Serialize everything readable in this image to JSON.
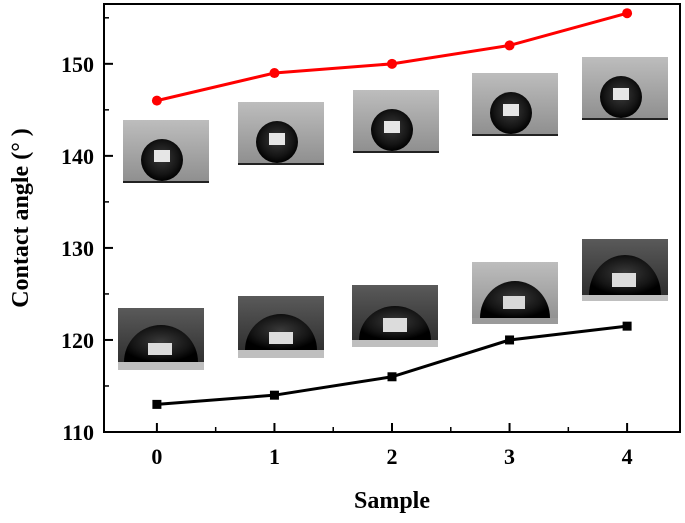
{
  "chart_data": {
    "type": "line",
    "title": "",
    "xlabel": "Sample",
    "ylabel": "Contact angle (° )",
    "categories": [
      "0",
      "1",
      "2",
      "3",
      "4"
    ],
    "x": [
      0,
      1,
      2,
      3,
      4
    ],
    "xlim": [
      -0.45,
      4.45
    ],
    "ylim": [
      110,
      156.5
    ],
    "yticks": [
      110,
      120,
      130,
      140,
      150
    ],
    "yticks_minor": [
      115,
      125,
      135,
      145,
      155
    ],
    "grid": false,
    "legend": "none",
    "series": [
      {
        "color": "#ff0000",
        "marker": "circle",
        "values": [
          146,
          149,
          150,
          152,
          155.5
        ]
      },
      {
        "color": "#000000",
        "marker": "square",
        "values": [
          113,
          114,
          116,
          120,
          121.5
        ]
      }
    ]
  }
}
